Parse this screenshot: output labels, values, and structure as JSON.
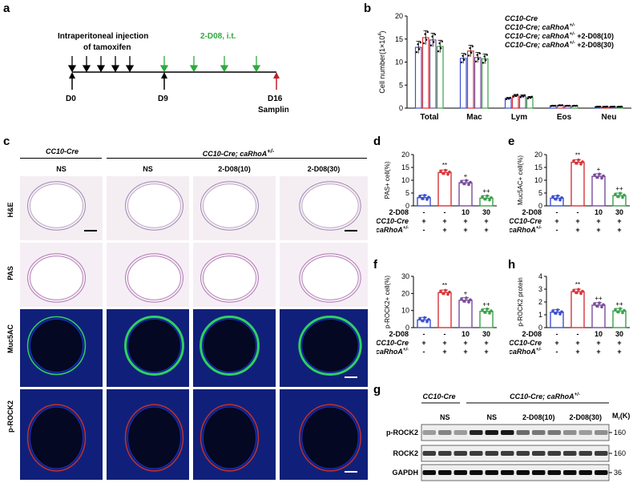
{
  "panels": {
    "a": {
      "letter": "a",
      "injection_label_line1": "Intraperitoneal injection",
      "injection_label_line2": "of tamoxifen",
      "treatment_label": "2-D08, i.t.",
      "day_labels": [
        "D0",
        "D9",
        "D16"
      ],
      "sampling_label": "Sampling",
      "colors": {
        "black": "#000000",
        "green": "#2eaa3c",
        "red": "#c0202a"
      }
    },
    "b": {
      "letter": "b"
    },
    "c": {
      "letter": "c",
      "group_left": "CC10-Cre",
      "group_right_prefix": "CC10-Cre; caRhoA",
      "group_right_sup": "+/-",
      "col_headers": [
        "NS",
        "NS",
        "2-D08(10)",
        "2-D08(30)"
      ],
      "row_labels": [
        "H&E",
        "PAS",
        "Muc5AC",
        "p-ROCK2"
      ]
    },
    "d": {
      "letter": "d"
    },
    "e": {
      "letter": "e"
    },
    "f": {
      "letter": "f"
    },
    "h": {
      "letter": "h"
    },
    "g": {
      "letter": "g",
      "group_left": "CC10-Cre",
      "group_right_prefix": "CC10-Cre; caRhoA",
      "group_right_sup": "+/-",
      "lane_groups": [
        "NS",
        "NS",
        "2-D08(10)",
        "2-D08(30)"
      ],
      "mr_label": "M",
      "mr_sub": "r",
      "mr_unit": "(K)",
      "blots": [
        {
          "name": "p-ROCK2",
          "marker": "160"
        },
        {
          "name": "ROCK2",
          "marker": "160"
        },
        {
          "name": "GAPDH",
          "marker": "36"
        }
      ]
    }
  },
  "chart_data": [
    {
      "panel": "b",
      "type": "bar",
      "ylabel": "Cell number(1×10",
      "ylabel_sup": "4",
      "ylabel_end": ")",
      "ylim": [
        0,
        20
      ],
      "yticks": [
        0,
        5,
        10,
        15,
        20
      ],
      "categories": [
        "Total",
        "Mac",
        "Lym",
        "Eos",
        "Neu"
      ],
      "legend_position": "top-right",
      "series": [
        {
          "name": "CC10-Cre",
          "color": "#3a4fd0",
          "values": [
            13.2,
            10.8,
            2.1,
            0.5,
            0.3
          ]
        },
        {
          "name": "CC10-Cre; caRhoA+/- ",
          "color": "#d8343a",
          "values": [
            15.3,
            12.4,
            2.7,
            0.6,
            0.3
          ]
        },
        {
          "name": "CC10-Cre; caRhoA+/- +2-D08(10)",
          "color": "#7a4c9c",
          "values": [
            14.8,
            11.0,
            2.6,
            0.5,
            0.3
          ]
        },
        {
          "name": "CC10-Cre; caRhoA+/- +2-D08(30)",
          "color": "#3aa04a",
          "values": [
            13.4,
            10.7,
            2.3,
            0.5,
            0.3
          ]
        }
      ],
      "legend": [
        {
          "prefix": "CC10-Cre",
          "sup": "",
          "suffix": ""
        },
        {
          "prefix": "CC10-Cre; caRhoA",
          "sup": "+/-",
          "suffix": ""
        },
        {
          "prefix": "CC10-Cre; caRhoA",
          "sup": "+/-",
          "suffix": " +2-D08(10)"
        },
        {
          "prefix": "CC10-Cre; caRhoA",
          "sup": "+/-",
          "suffix": " +2-D08(30)"
        }
      ]
    },
    {
      "panel": "d",
      "type": "bar",
      "ylabel": "PAS+ cell(%)",
      "ylim": [
        0,
        20
      ],
      "yticks": [
        0,
        5,
        10,
        15,
        20
      ],
      "values": [
        3.2,
        13.0,
        9.0,
        3.0
      ],
      "colors": [
        "#3a4fd0",
        "#d8343a",
        "#7a4c9c",
        "#3aa04a"
      ],
      "sig": [
        "",
        "**",
        "+",
        "++"
      ],
      "drug_row": [
        "-",
        "-",
        "10",
        "30"
      ],
      "cre_row": [
        "+",
        "+",
        "+",
        "+"
      ],
      "rhoa_row": [
        "-",
        "+",
        "+",
        "+"
      ]
    },
    {
      "panel": "e",
      "type": "bar",
      "ylabel": "Muc5AC+ cell(%)",
      "ylim": [
        0,
        20
      ],
      "yticks": [
        0,
        5,
        10,
        15,
        20
      ],
      "values": [
        3.0,
        17.0,
        11.5,
        4.0
      ],
      "colors": [
        "#3a4fd0",
        "#d8343a",
        "#7a4c9c",
        "#3aa04a"
      ],
      "sig": [
        "",
        "**",
        "+",
        "++"
      ],
      "drug_row": [
        "-",
        "-",
        "10",
        "30"
      ],
      "cre_row": [
        "+",
        "+",
        "+",
        "+"
      ],
      "rhoa_row": [
        "-",
        "+",
        "+",
        "+"
      ]
    },
    {
      "panel": "f",
      "type": "bar",
      "ylabel": "p-ROCK2+ cell(%)",
      "ylim": [
        0,
        30
      ],
      "yticks": [
        0,
        10,
        20,
        30
      ],
      "values": [
        4.5,
        20.5,
        16.0,
        9.5
      ],
      "colors": [
        "#3a4fd0",
        "#d8343a",
        "#7a4c9c",
        "#3aa04a"
      ],
      "sig": [
        "",
        "**",
        "+",
        "++"
      ],
      "drug_row": [
        "-",
        "-",
        "10",
        "30"
      ],
      "cre_row": [
        "+",
        "+",
        "+",
        "+"
      ],
      "rhoa_row": [
        "-",
        "+",
        "+",
        "+"
      ]
    },
    {
      "panel": "h",
      "type": "bar",
      "ylabel": "p-ROCK2 protein",
      "ylim": [
        0,
        4
      ],
      "yticks": [
        0,
        1,
        2,
        3,
        4
      ],
      "values": [
        1.2,
        2.8,
        1.75,
        1.3
      ],
      "colors": [
        "#3a4fd0",
        "#d8343a",
        "#7a4c9c",
        "#3aa04a"
      ],
      "sig": [
        "",
        "**",
        "++",
        "++"
      ],
      "drug_row": [
        "-",
        "-",
        "10",
        "30"
      ],
      "cre_row": [
        "+",
        "+",
        "+",
        "+"
      ],
      "rhoa_row": [
        "-",
        "+",
        "+",
        "+"
      ]
    }
  ],
  "row_labels_common": {
    "drug": "2-D08",
    "cre": "CC10-Cre",
    "rhoa_prefix": "Cre; caRhoA",
    "rhoa_sup": "+/-"
  }
}
